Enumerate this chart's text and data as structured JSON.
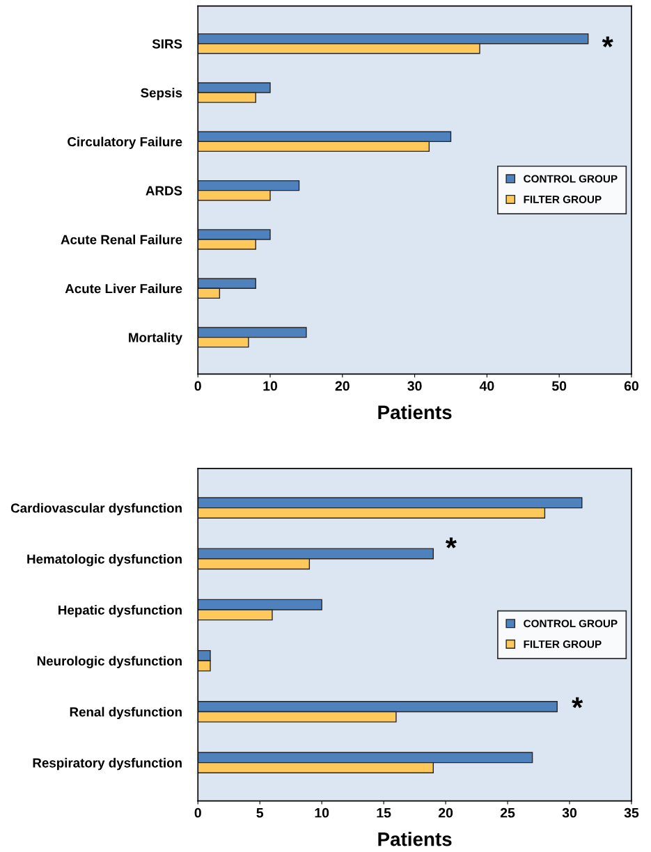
{
  "chart_data": [
    {
      "type": "bar",
      "orientation": "horizontal",
      "categories": [
        "SIRS",
        "Sepsis",
        "Circulatory Failure",
        "ARDS",
        "Acute Renal Failure",
        "Acute Liver Failure",
        "Mortality"
      ],
      "series": [
        {
          "name": "CONTROL GROUP",
          "color": "#4f81bd",
          "values": [
            54,
            10,
            35,
            14,
            10,
            8,
            15
          ]
        },
        {
          "name": "FILTER GROUP",
          "color": "#ffc85a",
          "values": [
            39,
            8,
            32,
            10,
            8,
            3,
            7
          ]
        }
      ],
      "xlabel": "Patients",
      "xlim": [
        0,
        60
      ],
      "xticks": [
        0,
        10,
        20,
        30,
        40,
        50,
        60
      ],
      "grid": false,
      "legend": "center right",
      "annotations": [
        "*"
      ]
    },
    {
      "type": "bar",
      "orientation": "horizontal",
      "categories": [
        "Cardiovascular dysfunction",
        "Hematologic dysfunction",
        "Hepatic dysfunction",
        "Neurologic dysfunction",
        "Renal dysfunction",
        "Respiratory dysfunction"
      ],
      "series": [
        {
          "name": "CONTROL GROUP",
          "color": "#4f81bd",
          "values": [
            31,
            19,
            10,
            1,
            29,
            27
          ]
        },
        {
          "name": "FILTER GROUP",
          "color": "#ffc85a",
          "values": [
            28,
            9,
            6,
            1,
            16,
            19
          ]
        }
      ],
      "xlabel": "Patients",
      "xlim": [
        0,
        35
      ],
      "xticks": [
        0,
        5,
        10,
        15,
        20,
        25,
        30,
        35
      ],
      "grid": false,
      "legend": "center right",
      "annotations": [
        "*",
        "*"
      ]
    }
  ]
}
